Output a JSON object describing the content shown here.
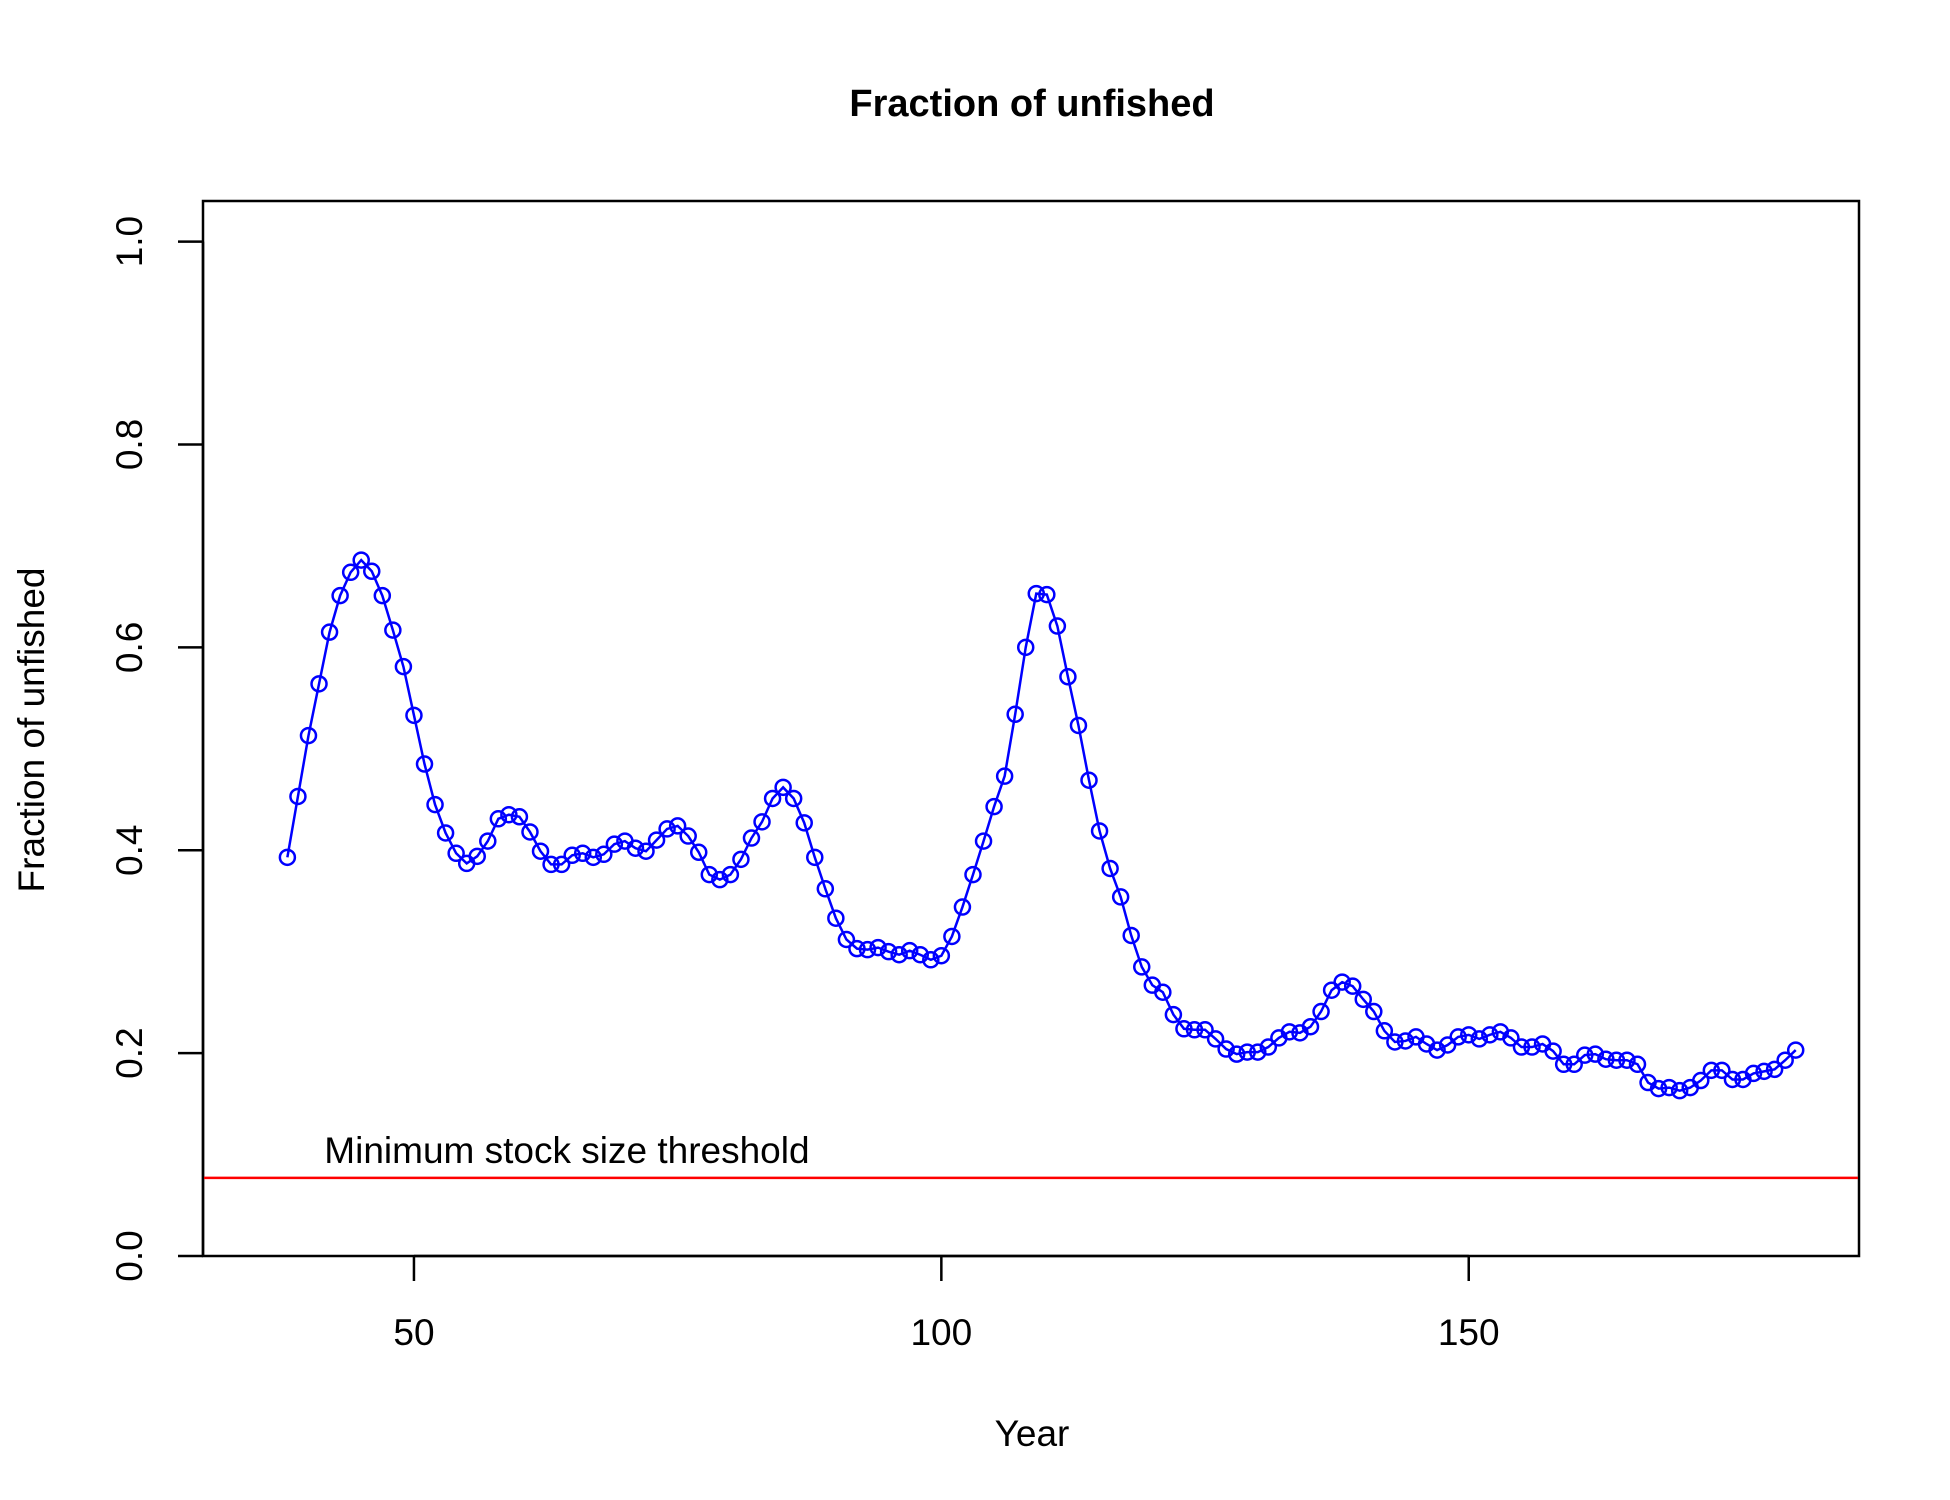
{
  "chart_data": {
    "type": "line",
    "title": "Fraction of unfished",
    "xlabel": "Year",
    "ylabel": "Fraction of unfished",
    "xlim": [
      30,
      187
    ],
    "ylim": [
      0,
      1.04
    ],
    "xticks": [
      50,
      100,
      150
    ],
    "yticks": [
      0.0,
      0.2,
      0.4,
      0.6,
      0.8,
      1.0
    ],
    "ytick_labels": [
      "0.0",
      "0.2",
      "0.4",
      "0.6",
      "0.8",
      "1.0"
    ],
    "grid": false,
    "series": [
      {
        "color": "#0000ff",
        "marker": "open-circle",
        "x": [
          38,
          39,
          40,
          41,
          42,
          43,
          44,
          45,
          46,
          47,
          48,
          49,
          50,
          51,
          52,
          53,
          54,
          55,
          56,
          57,
          58,
          59,
          60,
          61,
          62,
          63,
          64,
          65,
          66,
          67,
          68,
          69,
          70,
          71,
          72,
          73,
          74,
          75,
          76,
          77,
          78,
          79,
          80,
          81,
          82,
          83,
          84,
          85,
          86,
          87,
          88,
          89,
          90,
          91,
          92,
          93,
          94,
          95,
          96,
          97,
          98,
          99,
          100,
          101,
          102,
          103,
          104,
          105,
          106,
          107,
          108,
          109,
          110,
          111,
          112,
          113,
          114,
          115,
          116,
          117,
          118,
          119,
          120,
          121,
          122,
          123,
          124,
          125,
          126,
          127,
          128,
          129,
          130,
          131,
          132,
          133,
          134,
          135,
          136,
          137,
          138,
          139,
          140,
          141,
          142,
          143,
          144,
          145,
          146,
          147,
          148,
          149,
          150,
          151,
          152,
          153,
          154,
          155,
          156,
          157,
          158,
          159,
          160,
          161,
          162,
          163,
          164,
          165,
          166,
          167,
          168,
          169,
          170,
          171,
          172,
          173,
          174,
          175,
          176,
          177,
          178,
          179,
          180,
          181
        ],
        "y": [
          0.393,
          0.453,
          0.513,
          0.564,
          0.615,
          0.651,
          0.674,
          0.686,
          0.675,
          0.651,
          0.617,
          0.581,
          0.533,
          0.485,
          0.445,
          0.417,
          0.397,
          0.387,
          0.394,
          0.409,
          0.431,
          0.435,
          0.433,
          0.418,
          0.399,
          0.386,
          0.386,
          0.395,
          0.397,
          0.393,
          0.396,
          0.406,
          0.409,
          0.402,
          0.399,
          0.41,
          0.421,
          0.424,
          0.414,
          0.398,
          0.376,
          0.371,
          0.376,
          0.391,
          0.412,
          0.428,
          0.451,
          0.462,
          0.451,
          0.427,
          0.393,
          0.362,
          0.333,
          0.312,
          0.303,
          0.302,
          0.304,
          0.3,
          0.297,
          0.301,
          0.297,
          0.292,
          0.296,
          0.315,
          0.344,
          0.376,
          0.409,
          0.443,
          0.473,
          0.534,
          0.6,
          0.653,
          0.652,
          0.621,
          0.571,
          0.523,
          0.469,
          0.419,
          0.382,
          0.354,
          0.316,
          0.285,
          0.267,
          0.26,
          0.238,
          0.224,
          0.223,
          0.223,
          0.214,
          0.204,
          0.199,
          0.201,
          0.201,
          0.206,
          0.215,
          0.221,
          0.22,
          0.226,
          0.241,
          0.262,
          0.27,
          0.266,
          0.253,
          0.241,
          0.222,
          0.211,
          0.212,
          0.216,
          0.209,
          0.203,
          0.208,
          0.216,
          0.218,
          0.214,
          0.218,
          0.221,
          0.215,
          0.206,
          0.206,
          0.209,
          0.202,
          0.189,
          0.189,
          0.198,
          0.199,
          0.194,
          0.193,
          0.193,
          0.189,
          0.171,
          0.165,
          0.166,
          0.163,
          0.166,
          0.173,
          0.183,
          0.183,
          0.174,
          0.174,
          0.18,
          0.182,
          0.184,
          0.193,
          0.203
        ]
      }
    ],
    "reference_line": {
      "y": 0.077,
      "color": "#ff0000",
      "label": "Minimum stock size threshold"
    }
  }
}
